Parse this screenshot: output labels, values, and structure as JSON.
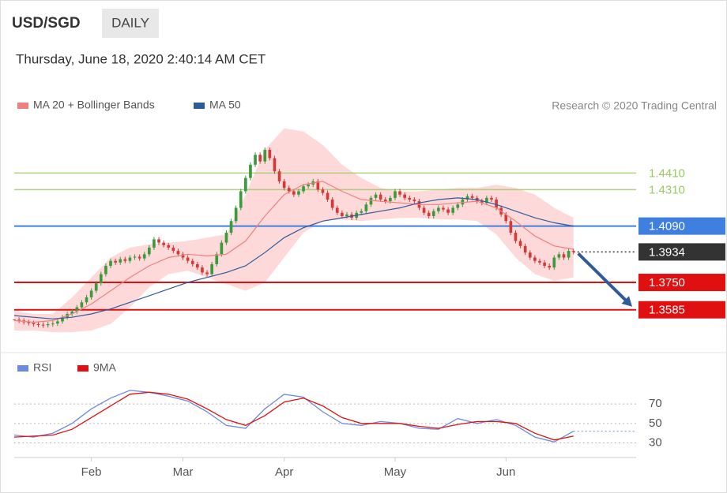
{
  "header": {
    "symbol": "USD/SGD",
    "timeframe": "DAILY",
    "timestamp": "Thursday, June 18, 2020 2:40:14 AM CET",
    "attribution": "Research © 2020 Trading Central"
  },
  "chart_data": [
    {
      "type": "candlestick",
      "series": [
        {
          "name": "MA 20 + Bollinger Bands",
          "color": "#f08080"
        },
        {
          "name": "MA 50",
          "color": "#2f5b9a"
        }
      ],
      "up_color": "#3c9a3c",
      "down_color": "#d23a3a",
      "band_color": "#fdd9d9",
      "closes": [
        1.3525,
        1.352,
        1.351,
        1.3505,
        1.3498,
        1.3495,
        1.3492,
        1.3498,
        1.3502,
        1.3515,
        1.354,
        1.356,
        1.3575,
        1.36,
        1.363,
        1.366,
        1.37,
        1.3745,
        1.38,
        1.385,
        1.388,
        1.387,
        1.389,
        1.388,
        1.39,
        1.3905,
        1.3895,
        1.392,
        1.396,
        1.401,
        1.399,
        1.3975,
        1.396,
        1.394,
        1.392,
        1.39,
        1.388,
        1.386,
        1.384,
        1.381,
        1.38,
        1.386,
        1.392,
        1.399,
        1.405,
        1.412,
        1.42,
        1.43,
        1.438,
        1.446,
        1.452,
        1.448,
        1.455,
        1.45,
        1.442,
        1.436,
        1.432,
        1.43,
        1.428,
        1.43,
        1.433,
        1.434,
        1.436,
        1.431,
        1.429,
        1.425,
        1.42,
        1.417,
        1.415,
        1.416,
        1.414,
        1.417,
        1.418,
        1.422,
        1.426,
        1.428,
        1.425,
        1.424,
        1.426,
        1.43,
        1.428,
        1.426,
        1.425,
        1.424,
        1.42,
        1.417,
        1.415,
        1.418,
        1.42,
        1.419,
        1.417,
        1.42,
        1.422,
        1.425,
        1.427,
        1.426,
        1.424,
        1.423,
        1.426,
        1.425,
        1.42,
        1.416,
        1.412,
        1.405,
        1.4,
        1.397,
        1.393,
        1.39,
        1.388,
        1.387,
        1.385,
        1.384,
        1.39,
        1.392,
        1.39,
        1.394,
        1.3934
      ],
      "x": [
        0,
        4,
        8,
        12,
        16,
        20,
        24,
        28,
        32,
        36,
        40,
        44,
        48,
        52,
        56,
        60,
        64,
        68,
        72,
        76,
        80,
        84,
        88,
        92,
        96,
        100,
        104,
        108,
        112,
        116
      ],
      "ma20": [
        1.352,
        1.351,
        1.352,
        1.356,
        1.362,
        1.37,
        1.378,
        1.385,
        1.39,
        1.392,
        1.391,
        1.392,
        1.4,
        1.415,
        1.428,
        1.434,
        1.436,
        1.43,
        1.425,
        1.424,
        1.423,
        1.422,
        1.422,
        1.423,
        1.424,
        1.42,
        1.412,
        1.403,
        1.397,
        1.395
      ],
      "ma50": [
        1.355,
        1.354,
        1.353,
        1.354,
        1.356,
        1.359,
        1.363,
        1.367,
        1.371,
        1.375,
        1.378,
        1.381,
        1.385,
        1.393,
        1.402,
        1.408,
        1.412,
        1.414,
        1.416,
        1.418,
        1.42,
        1.423,
        1.425,
        1.426,
        1.425,
        1.422,
        1.418,
        1.414,
        1.411,
        1.409
      ],
      "bb_upper": [
        1.358,
        1.356,
        1.356,
        1.366,
        1.378,
        1.39,
        1.396,
        1.398,
        1.399,
        1.4,
        1.402,
        1.404,
        1.428,
        1.455,
        1.468,
        1.466,
        1.458,
        1.446,
        1.438,
        1.432,
        1.43,
        1.43,
        1.431,
        1.432,
        1.432,
        1.434,
        1.432,
        1.428,
        1.42,
        1.414
      ],
      "bb_lower": [
        1.346,
        1.346,
        1.345,
        1.345,
        1.346,
        1.35,
        1.36,
        1.372,
        1.38,
        1.382,
        1.378,
        1.374,
        1.37,
        1.375,
        1.39,
        1.405,
        1.412,
        1.413,
        1.412,
        1.413,
        1.414,
        1.414,
        1.413,
        1.413,
        1.412,
        1.404,
        1.39,
        1.38,
        1.376,
        1.378
      ],
      "levels": [
        {
          "value": 1.441,
          "label": "1.4410",
          "color": "#9cc866",
          "boxed": false
        },
        {
          "value": 1.431,
          "label": "1.4310",
          "color": "#9cc866",
          "boxed": false
        },
        {
          "value": 1.409,
          "label": "1.4090",
          "color": "#3f7fe0",
          "boxed": true
        },
        {
          "value": 1.3934,
          "label": "1.3934",
          "color": "#333333",
          "boxed": true
        },
        {
          "value": 1.375,
          "label": "1.3750",
          "color": "#e01010",
          "boxed": true
        },
        {
          "value": 1.3585,
          "label": "1.3585",
          "color": "#e01010",
          "boxed": true
        }
      ],
      "projection_color": "#2f5b9a",
      "xlim": [
        0,
        129
      ],
      "ylim": [
        1.336,
        1.474
      ]
    },
    {
      "type": "line",
      "series": [
        {
          "name": "RSI",
          "color": "#6b8be0",
          "values": [
            38,
            36,
            40,
            50,
            65,
            76,
            84,
            82,
            78,
            73,
            62,
            48,
            45,
            65,
            80,
            77,
            62,
            50,
            48,
            52,
            50,
            45,
            44,
            55,
            50,
            54,
            48,
            36,
            31,
            42
          ]
        },
        {
          "name": "9MA",
          "color": "#e01010",
          "values": [
            36,
            37,
            38,
            44,
            56,
            68,
            80,
            82,
            80,
            75,
            65,
            54,
            48,
            58,
            72,
            76,
            68,
            56,
            50,
            50,
            50,
            47,
            45,
            49,
            52,
            52,
            50,
            40,
            33,
            37
          ]
        }
      ],
      "x": [
        0,
        4,
        8,
        12,
        16,
        20,
        24,
        28,
        32,
        36,
        40,
        44,
        48,
        52,
        56,
        60,
        64,
        68,
        72,
        76,
        80,
        84,
        88,
        92,
        96,
        100,
        104,
        108,
        112,
        116
      ],
      "xlim": [
        0,
        129
      ],
      "ylim": [
        15,
        92
      ],
      "yticks": [
        30,
        50,
        70
      ],
      "grid": true,
      "xticks": [
        {
          "value": 16,
          "label": "Feb"
        },
        {
          "value": 35,
          "label": "Mar"
        },
        {
          "value": 56,
          "label": "Apr"
        },
        {
          "value": 79,
          "label": "May"
        },
        {
          "value": 102,
          "label": "Jun"
        }
      ]
    }
  ]
}
